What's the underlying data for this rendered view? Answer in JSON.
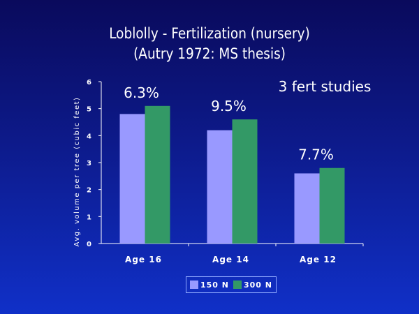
{
  "chart_data": {
    "type": "bar",
    "title_line1": "Loblolly - Fertilization (nursery)",
    "title_line2": "(Autry 1972: MS thesis)",
    "ylabel": "Avg. volume per tree (cubic feet)",
    "xlabel": "",
    "ylim": [
      0,
      6
    ],
    "yticks": [
      "0",
      "1",
      "2",
      "3",
      "4",
      "5",
      "6"
    ],
    "categories": [
      "Age 16",
      "Age 14",
      "Age 12"
    ],
    "series": [
      {
        "name": "150 N",
        "color": "#9999ff",
        "values": [
          4.8,
          4.2,
          2.6
        ]
      },
      {
        "name": "300 N",
        "color": "#339966",
        "values": [
          5.1,
          4.6,
          2.8
        ]
      }
    ],
    "percent_labels": [
      "6.3%",
      "9.5%",
      "7.7%"
    ],
    "note": "3 fert studies",
    "grid": false,
    "legend_position": "bottom"
  }
}
